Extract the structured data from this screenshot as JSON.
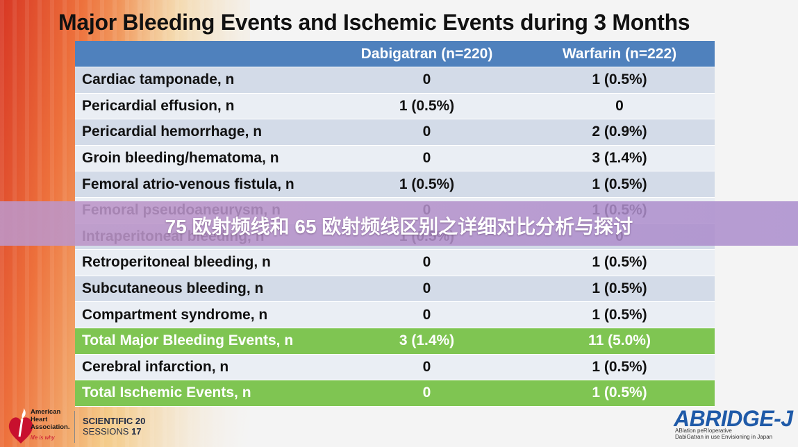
{
  "title": "Major Bleeding Events and Ischemic Events during 3 Months",
  "table": {
    "headers": [
      "",
      "Dabigatran (n=220)",
      "Warfarin (n=222)"
    ],
    "rows": [
      {
        "label": "Cardiac tamponade, n",
        "dabigatran": "0",
        "warfarin": "1 (0.5%)",
        "style": "odd"
      },
      {
        "label": "Pericardial effusion, n",
        "dabigatran": "1 (0.5%)",
        "warfarin": "0",
        "style": "even"
      },
      {
        "label": "Pericardial hemorrhage, n",
        "dabigatran": "0",
        "warfarin": "2 (0.9%)",
        "style": "odd"
      },
      {
        "label": "Groin bleeding/hematoma, n",
        "dabigatran": "0",
        "warfarin": "3 (1.4%)",
        "style": "even"
      },
      {
        "label": "Femoral atrio-venous fistula, n",
        "dabigatran": "1 (0.5%)",
        "warfarin": "1 (0.5%)",
        "style": "odd"
      },
      {
        "label": "Femoral pseudoaneurysm, n",
        "dabigatran": "0",
        "warfarin": "1 (0.5%)",
        "style": "even"
      },
      {
        "label": "Intraperitoneal bleeding, n",
        "dabigatran": "1 (0.5%)",
        "warfarin": "0",
        "style": "odd"
      },
      {
        "label": "Retroperitoneal bleeding, n",
        "dabigatran": "0",
        "warfarin": "1 (0.5%)",
        "style": "even"
      },
      {
        "label": "Subcutaneous bleeding, n",
        "dabigatran": "0",
        "warfarin": "1 (0.5%)",
        "style": "odd"
      },
      {
        "label": "Compartment syndrome, n",
        "dabigatran": "0",
        "warfarin": "1 (0.5%)",
        "style": "even"
      },
      {
        "label": "Total Major Bleeding Events, n",
        "dabigatran": "3 (1.4%)",
        "warfarin": "11 (5.0%)",
        "style": "total"
      },
      {
        "label": "Cerebral infarction, n",
        "dabigatran": "0",
        "warfarin": "1 (0.5%)",
        "style": "even"
      },
      {
        "label": "Total Ischemic Events, n",
        "dabigatran": "0",
        "warfarin": "1 (0.5%)",
        "style": "total"
      }
    ]
  },
  "banner": {
    "text": "75 欧射频线和 65 欧射频线区别之详细对比分析与探讨"
  },
  "footer": {
    "aha_name_line1": "American",
    "aha_name_line2": "Heart",
    "aha_name_line3": "Association.",
    "aha_tagline": "life is why",
    "sessions_line1": "SCIENTIFIC",
    "sessions_line2": "SESSIONS",
    "sessions_num_top": "20",
    "sessions_num_bottom": "17",
    "abridge_logo": "ABRIDGE-J",
    "abridge_sub1": "ABlation peRIoperative",
    "abridge_sub2": "DabiGatran in use Envisioning in Japan"
  },
  "colors": {
    "header_blue": "#4f81bd",
    "row_dark": "#d3dbe8",
    "row_light": "#eaeef4",
    "total_green": "#7fc552",
    "abridge_blue": "#1f5aa8",
    "aha_red": "#c8102e"
  }
}
